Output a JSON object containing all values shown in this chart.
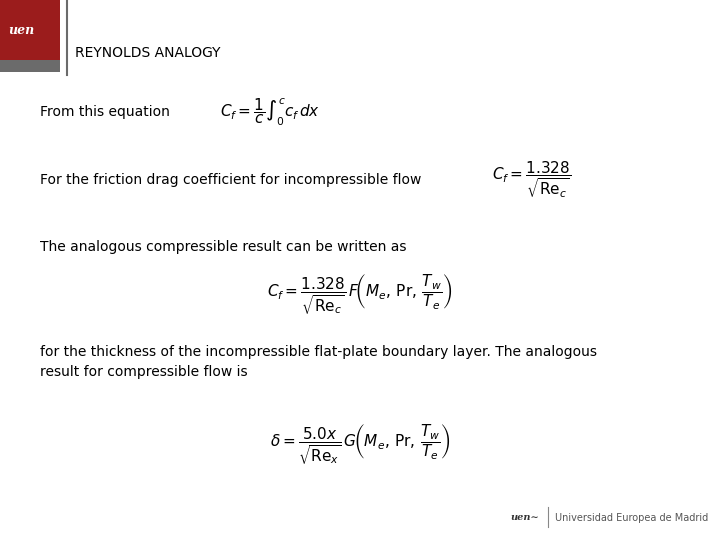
{
  "title": "REYNOLDS ANALOGY",
  "bg_color": "#ffffff",
  "text_color": "#000000",
  "logo_red": "#9b1c1c",
  "logo_gray": "#6b6b6b",
  "line1_text": "From this equation",
  "line1_formula": "$C_f = \\dfrac{1}{c}\\int_0^{c} c_f\\, dx$",
  "line2_text": "For the friction drag coefficient for incompressible flow",
  "line2_formula": "$C_f = \\dfrac{1.328}{\\sqrt{\\mathrm{Re}_c}}$",
  "line3_text": "The analogous compressible result can be written as",
  "line3_formula": "$C_f = \\dfrac{1.328}{\\sqrt{\\mathrm{Re}_c}}\\, F\\!\\left(M_e,\\, \\mathrm{Pr},\\, \\dfrac{T_w}{T_e}\\right)$",
  "line4_text": "for the thickness of the incompressible flat-plate boundary layer. The analogous\nresult for compressible flow is",
  "line4_formula": "$\\delta = \\dfrac{5.0x}{\\sqrt{\\mathrm{Re}_x}}\\, G\\!\\left(M_e,\\, \\mathrm{Pr},\\, \\dfrac{T_w}{T_e}\\right)$",
  "footer_text": "Universidad Europea de Madrid",
  "title_fontsize": 10,
  "body_fontsize": 10,
  "formula_fontsize": 11
}
